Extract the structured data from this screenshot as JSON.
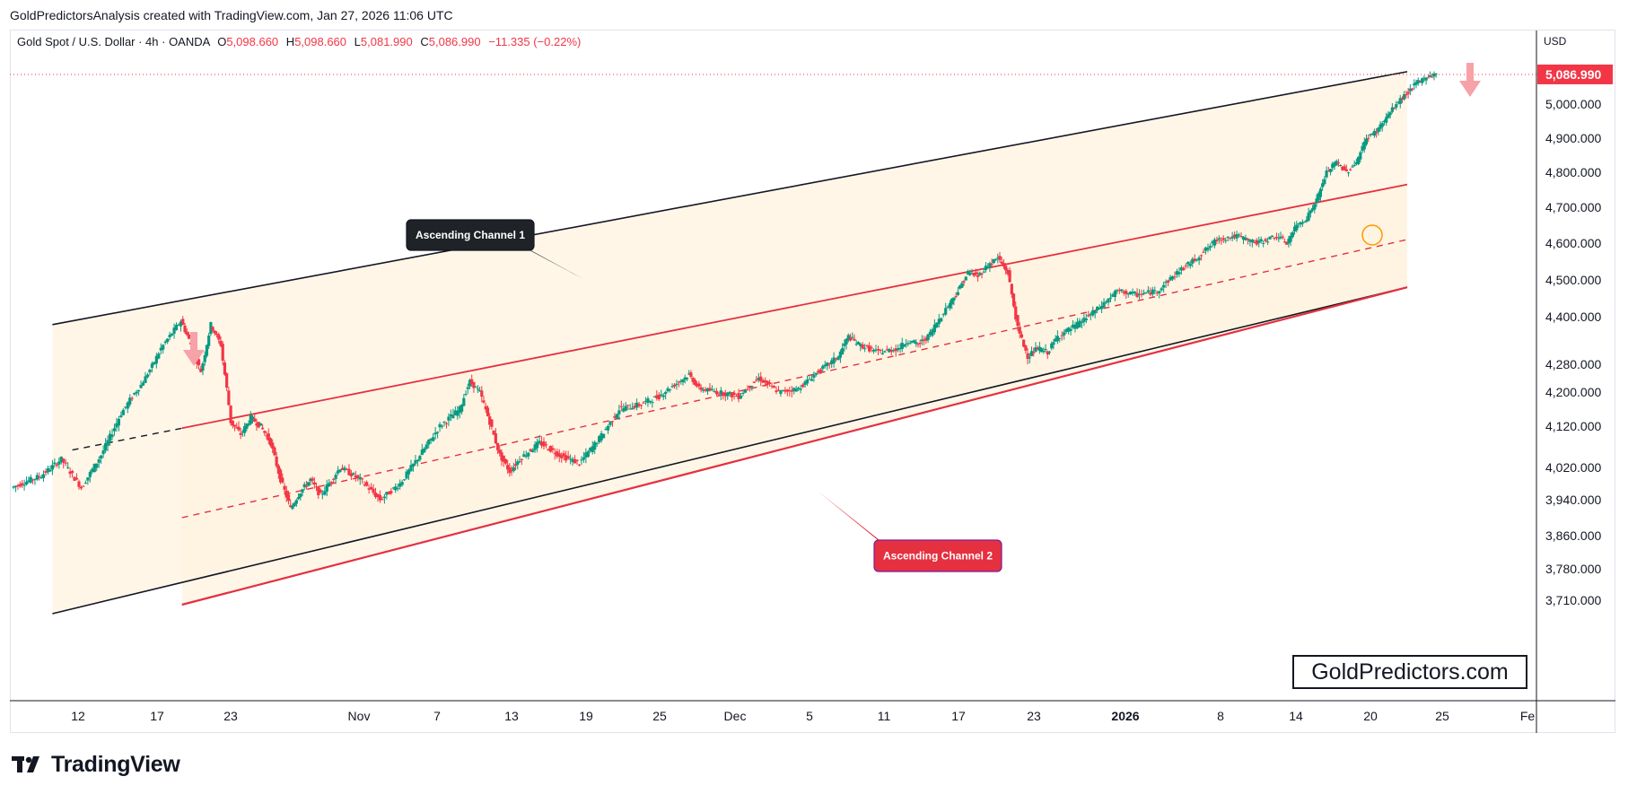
{
  "attribution": "GoldPredictorsAnalysis created with TradingView.com, Jan 27, 2026 11:06 UTC",
  "legend": {
    "symbol": "Gold Spot / U.S. Dollar · 4h · OANDA",
    "open_label": "O",
    "open": "5,098.660",
    "high_label": "H",
    "high": "5,098.660",
    "low_label": "L",
    "low": "5,081.990",
    "close_label": "C",
    "close": "5,086.990",
    "change": "−11.335 (−0.22%)"
  },
  "currency": "USD",
  "current_price_label": "5,086.990",
  "watermark": "GoldPredictors.com",
  "brand": "TradingView",
  "callouts": {
    "channel1": "Ascending Channel 1",
    "channel2": "Ascending Channel 2"
  },
  "colors": {
    "bull": "#089981",
    "bear": "#f23645",
    "channel1": "#131722",
    "channel2": "#e5303f",
    "fill": "#fff3e0",
    "arrow": "#f7a1a8",
    "circle": "#ff9800"
  },
  "chart_data": {
    "type": "candlestick",
    "timeframe": "4h",
    "y_ticks": [
      "5,000.000",
      "4,900.000",
      "4,800.000",
      "4,700.000",
      "4,600.000",
      "4,500.000",
      "4,400.000",
      "4,280.000",
      "4,200.000",
      "4,120.000",
      "4,020.000",
      "3,940.000",
      "3,860.000",
      "3,780.000",
      "3,710.000"
    ],
    "x_ticks": [
      "12",
      "17",
      "23",
      "Nov",
      "7",
      "13",
      "19",
      "25",
      "Dec",
      "5",
      "11",
      "17",
      "23",
      "2026",
      "8",
      "14",
      "20",
      "25",
      "Fe"
    ],
    "price_path": [
      [
        0,
        3970
      ],
      [
        3,
        4000
      ],
      [
        5,
        4040
      ],
      [
        7,
        3970
      ],
      [
        9,
        4050
      ],
      [
        11,
        4150
      ],
      [
        13,
        4220
      ],
      [
        15,
        4320
      ],
      [
        17,
        4390
      ],
      [
        18,
        4330
      ],
      [
        19,
        4260
      ],
      [
        20,
        4380
      ],
      [
        21,
        4330
      ],
      [
        22,
        4130
      ],
      [
        23,
        4100
      ],
      [
        24,
        4140
      ],
      [
        25,
        4120
      ],
      [
        26,
        4080
      ],
      [
        27,
        3990
      ],
      [
        28,
        3920
      ],
      [
        29,
        3960
      ],
      [
        30,
        3990
      ],
      [
        31,
        3950
      ],
      [
        33,
        4020
      ],
      [
        35,
        3990
      ],
      [
        37,
        3940
      ],
      [
        39,
        3980
      ],
      [
        41,
        4050
      ],
      [
        43,
        4120
      ],
      [
        45,
        4160
      ],
      [
        46,
        4230
      ],
      [
        47,
        4200
      ],
      [
        48,
        4130
      ],
      [
        49,
        4050
      ],
      [
        50,
        4010
      ],
      [
        51,
        4040
      ],
      [
        53,
        4080
      ],
      [
        55,
        4050
      ],
      [
        57,
        4030
      ],
      [
        59,
        4090
      ],
      [
        61,
        4160
      ],
      [
        63,
        4170
      ],
      [
        65,
        4190
      ],
      [
        67,
        4230
      ],
      [
        68,
        4250
      ],
      [
        69,
        4210
      ],
      [
        71,
        4200
      ],
      [
        73,
        4190
      ],
      [
        75,
        4240
      ],
      [
        77,
        4200
      ],
      [
        79,
        4210
      ],
      [
        81,
        4260
      ],
      [
        83,
        4300
      ],
      [
        84,
        4350
      ],
      [
        85,
        4330
      ],
      [
        87,
        4310
      ],
      [
        89,
        4320
      ],
      [
        90,
        4340
      ],
      [
        91,
        4330
      ],
      [
        92,
        4350
      ],
      [
        94,
        4430
      ],
      [
        95,
        4470
      ],
      [
        96,
        4520
      ],
      [
        97,
        4510
      ],
      [
        98,
        4540
      ],
      [
        99,
        4560
      ],
      [
        100,
        4520
      ],
      [
        101,
        4370
      ],
      [
        102,
        4300
      ],
      [
        103,
        4320
      ],
      [
        104,
        4310
      ],
      [
        105,
        4350
      ],
      [
        107,
        4380
      ],
      [
        109,
        4420
      ],
      [
        111,
        4470
      ],
      [
        113,
        4460
      ],
      [
        115,
        4470
      ],
      [
        117,
        4520
      ],
      [
        119,
        4560
      ],
      [
        121,
        4610
      ],
      [
        123,
        4620
      ],
      [
        125,
        4600
      ],
      [
        127,
        4620
      ],
      [
        128,
        4600
      ],
      [
        129,
        4650
      ],
      [
        130,
        4670
      ],
      [
        131,
        4720
      ],
      [
        132,
        4800
      ],
      [
        133,
        4830
      ],
      [
        134,
        4800
      ],
      [
        135,
        4830
      ],
      [
        136,
        4900
      ],
      [
        137,
        4920
      ],
      [
        138,
        4960
      ],
      [
        139,
        5000
      ],
      [
        140,
        5030
      ],
      [
        141,
        5060
      ],
      [
        142,
        5080
      ],
      [
        143,
        5087
      ]
    ],
    "channels": [
      {
        "name": "Ascending Channel 1",
        "upper": [
          [
            4,
            4380
          ],
          [
            140,
            5095
          ]
        ],
        "lower": [
          [
            4,
            3680
          ],
          [
            140,
            4480
          ]
        ]
      },
      {
        "name": "Ascending Channel 2",
        "upper": [
          [
            17,
            4115
          ],
          [
            140,
            4765
          ]
        ],
        "mid": [
          [
            17,
            3900
          ],
          [
            140,
            4610
          ]
        ],
        "lower": [
          [
            17,
            3700
          ],
          [
            140,
            4480
          ]
        ]
      }
    ],
    "last_close": 5086.99
  }
}
